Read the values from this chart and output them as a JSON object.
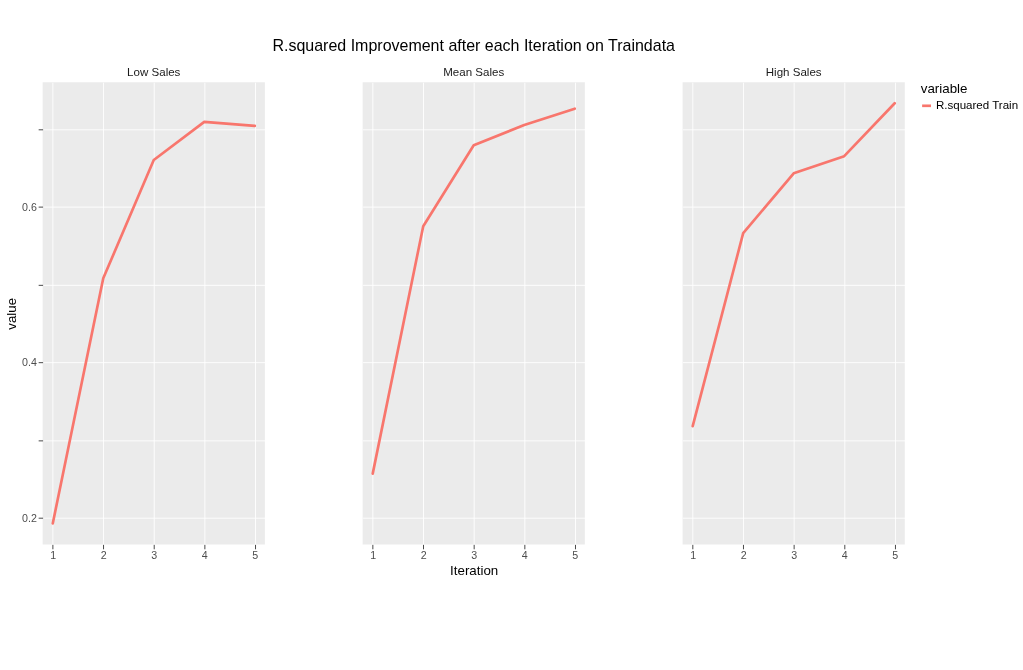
{
  "chart_data": [
    {
      "type": "line",
      "subtitle": "Low Sales",
      "ylabel": "value",
      "x": [
        1,
        2,
        3,
        4,
        5
      ],
      "series": [
        {
          "color": "#f8766d",
          "values": [
            0.193,
            0.508,
            0.66,
            0.709,
            0.704
          ]
        }
      ],
      "xlim": [
        0.8,
        5.2
      ],
      "xticks": [
        1,
        2,
        3,
        4,
        5
      ],
      "ylim": [
        0.166,
        0.76
      ],
      "yticks": [
        0.2,
        {
          "value": 0.3,
          "label": null
        },
        0.4,
        {
          "value": 0.5,
          "label": null
        },
        0.6,
        {
          "value": 0.7,
          "label": null
        }
      ],
      "grid": true,
      "legend": false
    },
    {
      "type": "line",
      "title": "R.squared Improvement after each Iteration on Traindata",
      "subtitle": "Mean Sales",
      "xlabel": "Iteration",
      "x": [
        1,
        2,
        3,
        4,
        5
      ],
      "series": [
        {
          "color": "#f8766d",
          "values": [
            0.257,
            0.575,
            0.679,
            0.705,
            0.726
          ]
        }
      ],
      "xlim": [
        0.8,
        5.2
      ],
      "xticks": [
        1,
        2,
        3,
        4,
        5
      ],
      "ylim": [
        0.166,
        0.76
      ],
      "yticks": [
        0.2,
        {
          "value": 0.3,
          "label": null
        },
        0.4,
        {
          "value": 0.5,
          "label": null
        },
        0.6,
        {
          "value": 0.7,
          "label": null
        }
      ],
      "grid": true,
      "legend": false,
      "tick_labels": "x"
    },
    {
      "type": "line",
      "subtitle": "High Sales",
      "legend_title": "variable",
      "x": [
        1,
        2,
        3,
        4,
        5
      ],
      "series": [
        {
          "name": "R.squared Train",
          "color": "#f8766d",
          "values": [
            0.318,
            0.566,
            0.643,
            0.665,
            0.733
          ]
        }
      ],
      "xlim": [
        0.8,
        5.2
      ],
      "xticks": [
        1,
        2,
        3,
        4,
        5
      ],
      "ylim": [
        0.166,
        0.76
      ],
      "yticks": [
        0.2,
        {
          "value": 0.3,
          "label": null
        },
        0.4,
        {
          "value": 0.5,
          "label": null
        },
        0.6,
        {
          "value": 0.7,
          "label": null
        }
      ],
      "grid": true,
      "legend": "right",
      "tick_labels": "x"
    }
  ]
}
